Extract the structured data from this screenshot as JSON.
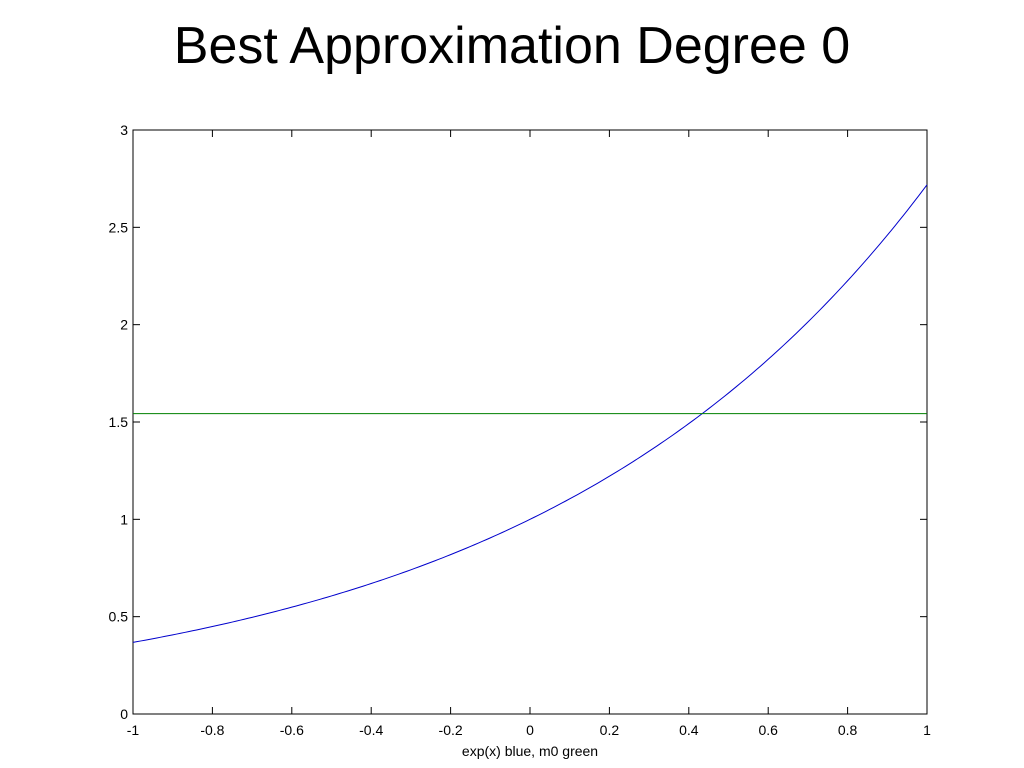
{
  "slide": {
    "title": "Best Approximation Degree 0"
  },
  "chart_data": {
    "type": "line",
    "title": "",
    "xlabel": "exp(x) blue, m0 green",
    "ylabel": "",
    "xlim": [
      -1,
      1
    ],
    "ylim": [
      0,
      3
    ],
    "xticks": [
      "-1",
      "-0.8",
      "-0.6",
      "-0.4",
      "-0.2",
      "0",
      "0.2",
      "0.4",
      "0.6",
      "0.8",
      "1"
    ],
    "yticks": [
      "0",
      "0.5",
      "1",
      "1.5",
      "2",
      "2.5",
      "3"
    ],
    "grid": false,
    "series": [
      {
        "color": "#0000cc",
        "function": "exp",
        "x": [
          -1,
          -0.8,
          -0.6,
          -0.4,
          -0.2,
          0,
          0.2,
          0.4,
          0.6,
          0.8,
          1
        ],
        "y": [
          0.368,
          0.449,
          0.549,
          0.67,
          0.819,
          1.0,
          1.221,
          1.492,
          1.822,
          2.226,
          2.718
        ]
      },
      {
        "color": "#008000",
        "x": [
          -1,
          1
        ],
        "y": [
          1.543,
          1.543
        ]
      }
    ]
  }
}
